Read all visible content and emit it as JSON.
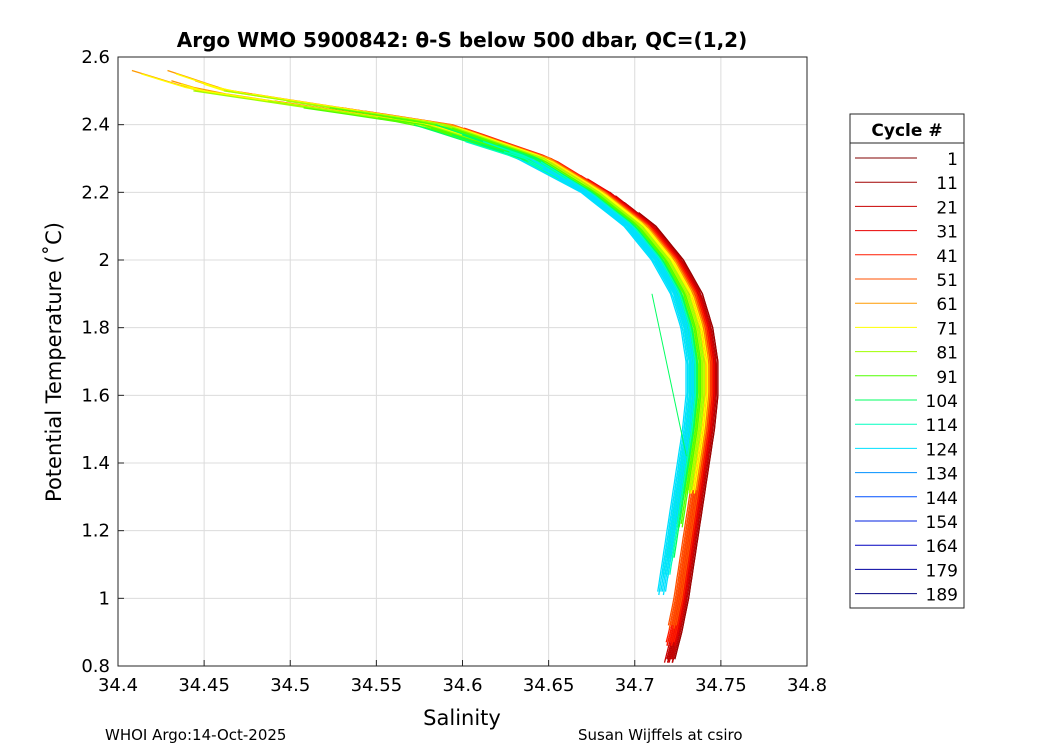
{
  "chart_data": {
    "type": "line",
    "title": "Argo WMO 5900842: θ-S below 500 dbar,  QC=(1,2)",
    "xlabel": "Salinity",
    "ylabel": "Potential Temperature (˚C)",
    "xlim": [
      34.4,
      34.8
    ],
    "ylim": [
      0.8,
      2.6
    ],
    "xticks": [
      "34.4",
      "34.45",
      "34.5",
      "34.55",
      "34.6",
      "34.65",
      "34.7",
      "34.75",
      "34.8"
    ],
    "yticks": [
      "0.8",
      "1",
      "1.2",
      "1.4",
      "1.6",
      "1.8",
      "2",
      "2.2",
      "2.4",
      "2.6"
    ],
    "grid": true,
    "legend_title": "Cycle #",
    "legend_position": "right",
    "base_curve": {
      "theta": [
        2.58,
        2.5,
        2.4,
        2.3,
        2.2,
        2.1,
        2.0,
        1.9,
        1.8,
        1.7,
        1.6,
        1.5,
        1.4,
        1.3,
        1.2,
        1.1,
        1.0,
        0.9,
        0.8
      ],
      "salinity": [
        34.4,
        34.45,
        34.58,
        34.64,
        34.675,
        34.7,
        34.716,
        34.727,
        34.733,
        34.736,
        34.736,
        34.734,
        34.731,
        34.728,
        34.725,
        34.722,
        34.719,
        34.715,
        34.71
      ]
    },
    "series": [
      {
        "name": "1",
        "color": "#800000",
        "salinity_offset": 0.01,
        "theta_range": [
          0.8,
          2.2
        ]
      },
      {
        "name": "11",
        "color": "#a00000",
        "salinity_offset": 0.01,
        "theta_range": [
          0.8,
          2.2
        ]
      },
      {
        "name": "21",
        "color": "#c80000",
        "salinity_offset": 0.009,
        "theta_range": [
          0.8,
          2.25
        ]
      },
      {
        "name": "31",
        "color": "#e80000",
        "salinity_offset": 0.008,
        "theta_range": [
          0.85,
          2.3
        ]
      },
      {
        "name": "41",
        "color": "#ff1a00",
        "salinity_offset": 0.007,
        "theta_range": [
          0.85,
          2.45
        ]
      },
      {
        "name": "51",
        "color": "#ff5000",
        "salinity_offset": 0.006,
        "theta_range": [
          0.9,
          2.5
        ]
      },
      {
        "name": "61",
        "color": "#ff9a00",
        "salinity_offset": 0.005,
        "theta_range": [
          1.3,
          2.56
        ]
      },
      {
        "name": "71",
        "color": "#ffff00",
        "salinity_offset": 0.004,
        "theta_range": [
          1.3,
          2.55
        ]
      },
      {
        "name": "81",
        "color": "#a0ff00",
        "salinity_offset": 0.002,
        "theta_range": [
          1.3,
          2.5
        ]
      },
      {
        "name": "91",
        "color": "#50ff00",
        "salinity_offset": 0.0,
        "theta_range": [
          1.2,
          2.45
        ]
      },
      {
        "name": "104",
        "color": "#00ff60",
        "salinity_offset": -0.002,
        "theta_range": [
          1.1,
          2.4
        ]
      },
      {
        "name": "114",
        "color": "#00ffc0",
        "salinity_offset": -0.003,
        "theta_range": [
          1.05,
          2.35
        ]
      },
      {
        "name": "124",
        "color": "#00e0ff",
        "salinity_offset": -0.004,
        "theta_range": [
          1.0,
          2.3
        ]
      },
      {
        "name": "134",
        "color": "#0090ff",
        "salinity_offset": -0.005,
        "theta_range": null
      },
      {
        "name": "144",
        "color": "#0050ff",
        "salinity_offset": -0.005,
        "theta_range": null
      },
      {
        "name": "154",
        "color": "#0020e0",
        "salinity_offset": -0.005,
        "theta_range": null
      },
      {
        "name": "164",
        "color": "#0000c0",
        "salinity_offset": -0.005,
        "theta_range": null
      },
      {
        "name": "179",
        "color": "#0000a0",
        "salinity_offset": -0.005,
        "theta_range": null
      },
      {
        "name": "189",
        "color": "#000080",
        "salinity_offset": -0.005,
        "theta_range": null
      }
    ],
    "outlier_segment": {
      "color": "#00ff60",
      "salinity": [
        34.71,
        34.73
      ],
      "theta": [
        1.9,
        1.42
      ]
    }
  },
  "footer": {
    "left": "WHOI Argo:14-Oct-2025",
    "right": "Susan Wijffels at csiro"
  }
}
